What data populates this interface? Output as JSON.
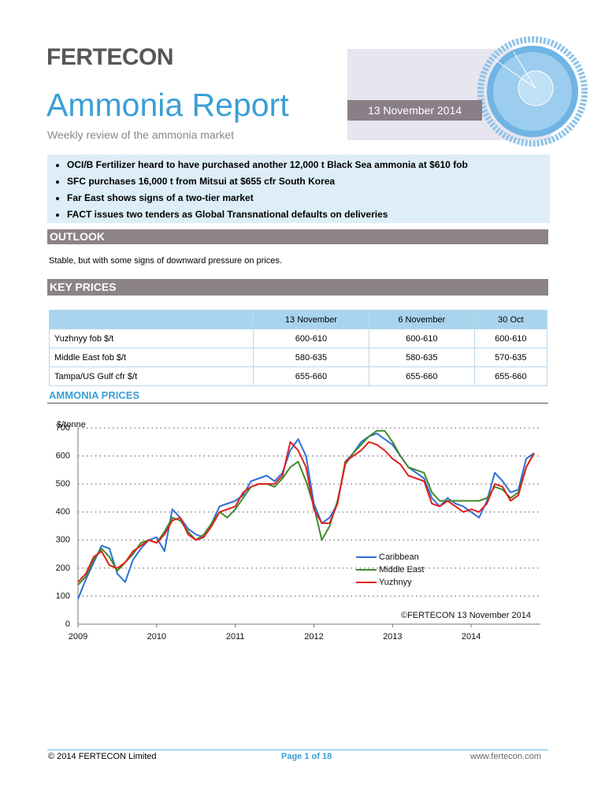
{
  "header": {
    "brand": "FERTECON",
    "title": "Ammonia Report",
    "subtitle": "Weekly review of the ammonia market",
    "date": "13 November 2014"
  },
  "highlights": [
    "OCI/B Fertilizer heard to have purchased another 12,000 t Black Sea ammonia at $610 fob",
    "SFC purchases 16,000 t from Mitsui at $655 cfr South Korea",
    "Far East shows signs of a two-tier market",
    "FACT issues two tenders as Global Transnational defaults on deliveries"
  ],
  "outlook": {
    "heading": "OUTLOOK",
    "text": "Stable, but with some signs of downward pressure on prices."
  },
  "key_prices": {
    "heading": "KEY PRICES",
    "columns": [
      "13 November",
      "6 November",
      "30 Oct"
    ],
    "rows": [
      {
        "label": "Yuzhnyy fob $/t",
        "cells": [
          "600-610",
          "600-610",
          "600-610"
        ]
      },
      {
        "label": "Middle East fob $/t",
        "cells": [
          "580-635",
          "580-635",
          "570-635"
        ]
      },
      {
        "label": "Tampa/US Gulf cfr $/t",
        "cells": [
          "655-660",
          "655-660",
          "655-660"
        ]
      }
    ]
  },
  "chart_heading": "AMMONIA PRICES",
  "chart_data": {
    "type": "line",
    "y_label": "$/tonne",
    "annotation": "©FERTECON 13 November 2014",
    "x": [
      2009.0,
      2009.1,
      2009.2,
      2009.3,
      2009.4,
      2009.5,
      2009.6,
      2009.7,
      2009.8,
      2009.9,
      2010.0,
      2010.1,
      2010.2,
      2010.3,
      2010.4,
      2010.5,
      2010.6,
      2010.7,
      2010.8,
      2010.9,
      2011.0,
      2011.1,
      2011.2,
      2011.3,
      2011.4,
      2011.5,
      2011.6,
      2011.7,
      2011.8,
      2011.9,
      2012.0,
      2012.1,
      2012.2,
      2012.3,
      2012.4,
      2012.5,
      2012.6,
      2012.7,
      2012.8,
      2012.9,
      2013.0,
      2013.1,
      2013.2,
      2013.3,
      2013.4,
      2013.5,
      2013.6,
      2013.7,
      2013.8,
      2013.9,
      2014.0,
      2014.1,
      2014.2,
      2014.3,
      2014.4,
      2014.5,
      2014.6,
      2014.7,
      2014.8
    ],
    "series": [
      {
        "name": "Caribbean",
        "color": "#2f6fd6",
        "values": [
          90,
          160,
          220,
          280,
          270,
          180,
          150,
          230,
          270,
          300,
          310,
          260,
          410,
          380,
          340,
          320,
          310,
          360,
          420,
          430,
          440,
          460,
          510,
          520,
          530,
          510,
          540,
          620,
          660,
          600,
          430,
          360,
          380,
          430,
          580,
          610,
          650,
          670,
          680,
          660,
          640,
          600,
          560,
          540,
          520,
          450,
          420,
          450,
          430,
          420,
          400,
          380,
          440,
          540,
          510,
          470,
          480,
          590,
          610
        ]
      },
      {
        "name": "Middle East",
        "color": "#3e8a2e",
        "values": [
          140,
          170,
          230,
          270,
          240,
          190,
          220,
          250,
          290,
          300,
          290,
          330,
          380,
          370,
          330,
          300,
          320,
          360,
          400,
          380,
          410,
          450,
          490,
          500,
          500,
          490,
          520,
          560,
          580,
          510,
          420,
          300,
          350,
          440,
          570,
          610,
          640,
          670,
          690,
          690,
          650,
          600,
          560,
          550,
          540,
          470,
          440,
          440,
          440,
          440,
          440,
          440,
          450,
          490,
          480,
          450,
          470,
          560,
          610
        ]
      },
      {
        "name": "Yuzhnyy",
        "color": "#e0201b",
        "values": [
          150,
          180,
          240,
          260,
          210,
          200,
          220,
          260,
          280,
          300,
          290,
          320,
          370,
          380,
          320,
          300,
          310,
          350,
          400,
          410,
          420,
          470,
          490,
          500,
          500,
          500,
          530,
          650,
          620,
          560,
          410,
          360,
          360,
          430,
          580,
          600,
          620,
          650,
          640,
          620,
          590,
          570,
          530,
          520,
          510,
          430,
          420,
          440,
          420,
          400,
          410,
          400,
          430,
          500,
          490,
          440,
          460,
          560,
          610
        ]
      }
    ],
    "xlim": [
      2009,
      2014.88
    ],
    "ylim": [
      0,
      700
    ],
    "xticks": [
      2009,
      2010,
      2011,
      2012,
      2013,
      2014
    ],
    "yticks": [
      0,
      100,
      200,
      300,
      400,
      500,
      600,
      700
    ],
    "grid": true,
    "legend": "lower right"
  },
  "footer": {
    "copyright": "© 2014 FERTECON Limited",
    "page": "Page 1 of 18",
    "website": "www.fertecon.com"
  }
}
